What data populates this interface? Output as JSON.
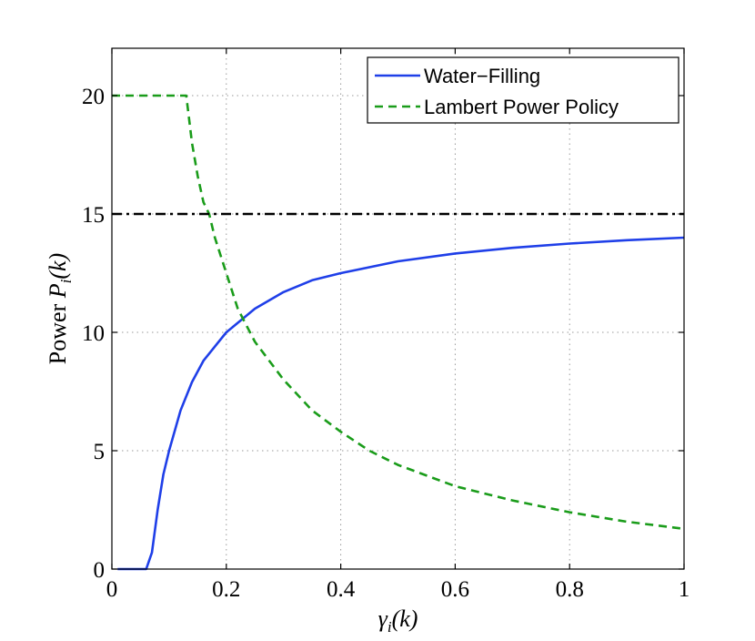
{
  "chart_data": {
    "type": "line",
    "title": "",
    "xlabel": {
      "main": "γ",
      "sub": "i",
      "tail": "(k)"
    },
    "ylabel": {
      "word": "Power ",
      "main": "P",
      "sub": "i",
      "tail": "(k)"
    },
    "xlim": [
      0,
      1
    ],
    "ylim": [
      0,
      22
    ],
    "xticks": [
      0,
      0.2,
      0.4,
      0.6,
      0.8,
      1
    ],
    "xtick_labels": [
      "0",
      "0.2",
      "0.4",
      "0.6",
      "0.8",
      "1"
    ],
    "yticks": [
      0,
      5,
      10,
      15,
      20
    ],
    "ytick_labels": [
      "0",
      "5",
      "10",
      "15",
      "20"
    ],
    "grid": true,
    "legend_position": "top-right",
    "series": [
      {
        "name": "Water−Filling",
        "color": "#1f3fe8",
        "style": "solid",
        "x": [
          0.01,
          0.06,
          0.07,
          0.08,
          0.09,
          0.1,
          0.12,
          0.14,
          0.16,
          0.18,
          0.2,
          0.25,
          0.3,
          0.35,
          0.4,
          0.5,
          0.6,
          0.7,
          0.8,
          0.9,
          1.0
        ],
        "y": [
          0,
          0,
          0.7,
          2.5,
          4.0,
          5.0,
          6.7,
          7.9,
          8.8,
          9.4,
          10.0,
          11.0,
          11.7,
          12.2,
          12.5,
          13.0,
          13.33,
          13.57,
          13.75,
          13.89,
          14.0
        ]
      },
      {
        "name": "Lambert Power Policy",
        "color": "#1a9c1a",
        "style": "dashed",
        "x": [
          0.0,
          0.13,
          0.14,
          0.15,
          0.16,
          0.17,
          0.18,
          0.2,
          0.22,
          0.25,
          0.3,
          0.35,
          0.4,
          0.45,
          0.5,
          0.6,
          0.7,
          0.8,
          0.9,
          1.0
        ],
        "y": [
          20,
          20,
          18.0,
          16.6,
          15.5,
          15.0,
          14.0,
          12.5,
          11.0,
          9.6,
          8.0,
          6.7,
          5.8,
          5.0,
          4.4,
          3.5,
          2.9,
          2.4,
          2.0,
          1.7
        ]
      },
      {
        "name": "",
        "color": "#000000",
        "style": "dashdot",
        "x": [
          0,
          1
        ],
        "y": [
          15,
          15
        ]
      }
    ],
    "legend": [
      "Water−Filling",
      "Lambert Power Policy"
    ]
  }
}
